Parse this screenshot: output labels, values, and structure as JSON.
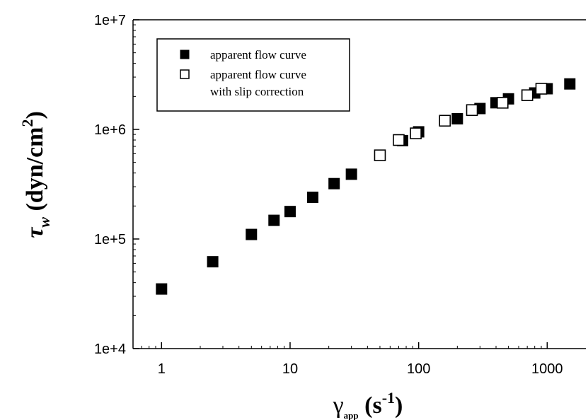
{
  "chart_data": {
    "type": "scatter",
    "xscale": "log",
    "yscale": "log",
    "xlim": [
      0.6,
      2000
    ],
    "ylim": [
      10000,
      10000000
    ],
    "x_ticks": [
      1,
      10,
      100,
      1000
    ],
    "x_tick_labels": [
      "1",
      "10",
      "100",
      "1000"
    ],
    "y_ticks": [
      10000,
      100000,
      1000000,
      10000000
    ],
    "y_tick_labels": [
      "1e+4",
      "1e+5",
      "1e+6",
      "1e+7"
    ],
    "xlabel": {
      "symbol": "γ",
      "subscript": "app",
      "unit_open": " (s",
      "unit_sup": "-1",
      "unit_close": ")"
    },
    "ylabel": {
      "symbol": "τ",
      "subscript": "w",
      "unit_open": " (dyn/cm",
      "unit_sup": "2",
      "unit_close": ")"
    },
    "legend_position": "top-left",
    "series": [
      {
        "name": "apparent flow curve",
        "marker": "filled-square",
        "color": "#000000",
        "points": [
          [
            1,
            35000
          ],
          [
            2.5,
            62000
          ],
          [
            5,
            110000
          ],
          [
            7.5,
            148000
          ],
          [
            10,
            178000
          ],
          [
            15,
            240000
          ],
          [
            22,
            320000
          ],
          [
            30,
            390000
          ],
          [
            75,
            790000
          ],
          [
            100,
            950000
          ],
          [
            200,
            1250000
          ],
          [
            300,
            1550000
          ],
          [
            400,
            1750000
          ],
          [
            500,
            1900000
          ],
          [
            800,
            2150000
          ],
          [
            1000,
            2350000
          ],
          [
            1500,
            2600000
          ]
        ]
      },
      {
        "name": "apparent flow curve\nwith slip correction",
        "name_lines": [
          "apparent flow curve",
          "with slip correction"
        ],
        "marker": "open-square",
        "color": "#000000",
        "points": [
          [
            50,
            580000
          ],
          [
            70,
            800000
          ],
          [
            95,
            920000
          ],
          [
            160,
            1200000
          ],
          [
            260,
            1500000
          ],
          [
            450,
            1750000
          ],
          [
            700,
            2050000
          ],
          [
            900,
            2350000
          ]
        ]
      }
    ]
  }
}
